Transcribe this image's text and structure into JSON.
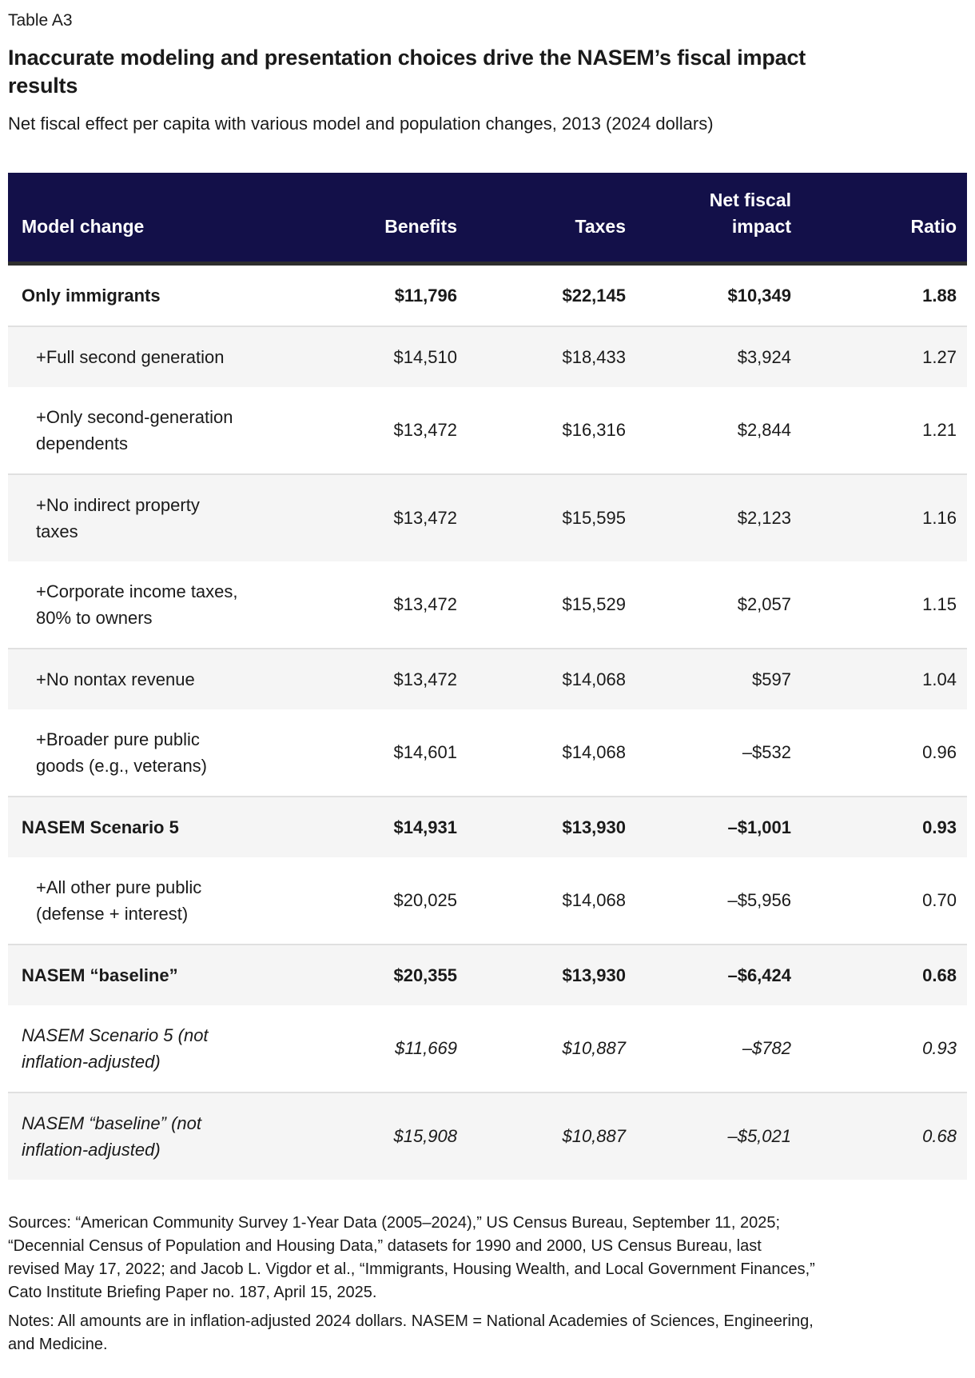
{
  "page": {
    "table_label": "Table A3",
    "title": "Inaccurate modeling and presentation choices drive the NASEM’s fiscal impact\nresults",
    "subtitle": "Net fiscal effect per capita with various model and population changes, 2013 (2024 dollars)"
  },
  "colors": {
    "header_bg": "#131049",
    "header_text": "#ffffff",
    "header_underline": "#2e2e2e",
    "row_stripe": "#f5f5f5",
    "row_divider": "#e0e0e0",
    "body_text": "#1a1a1a"
  },
  "table": {
    "columns": [
      "Model change",
      "Benefits",
      "Taxes",
      "Net fiscal\nimpact",
      "Ratio"
    ],
    "rows": [
      {
        "label": "Only immigrants",
        "benefits": "$11,796",
        "taxes": "$22,145",
        "net": "$10,349",
        "ratio": "1.88",
        "style": "bold"
      },
      {
        "label": "+Full second generation",
        "benefits": "$14,510",
        "taxes": "$18,433",
        "net": "$3,924",
        "ratio": "1.27",
        "style": "step"
      },
      {
        "label": "+Only second-generation\ndependents",
        "benefits": "$13,472",
        "taxes": "$16,316",
        "net": "$2,844",
        "ratio": "1.21",
        "style": "step"
      },
      {
        "label": "+No indirect property\ntaxes",
        "benefits": "$13,472",
        "taxes": "$15,595",
        "net": "$2,123",
        "ratio": "1.16",
        "style": "step"
      },
      {
        "label": "+Corporate income taxes,\n80% to owners",
        "benefits": "$13,472",
        "taxes": "$15,529",
        "net": "$2,057",
        "ratio": "1.15",
        "style": "step"
      },
      {
        "label": "+No nontax revenue",
        "benefits": "$13,472",
        "taxes": "$14,068",
        "net": "$597",
        "ratio": "1.04",
        "style": "step"
      },
      {
        "label": "+Broader pure public\ngoods (e.g., veterans)",
        "benefits": "$14,601",
        "taxes": "$14,068",
        "net": "–$532",
        "ratio": "0.96",
        "style": "step"
      },
      {
        "label": "NASEM Scenario 5",
        "benefits": "$14,931",
        "taxes": "$13,930",
        "net": "–$1,001",
        "ratio": "0.93",
        "style": "bold"
      },
      {
        "label": "+All other pure public\n(defense + interest)",
        "benefits": "$20,025",
        "taxes": "$14,068",
        "net": "–$5,956",
        "ratio": "0.70",
        "style": "step"
      },
      {
        "label": "NASEM “baseline”",
        "benefits": "$20,355",
        "taxes": "$13,930",
        "net": "–$6,424",
        "ratio": "0.68",
        "style": "bold"
      },
      {
        "label": "NASEM Scenario 5 (not\ninflation-adjusted)",
        "benefits": "$11,669",
        "taxes": "$10,887",
        "net": "–$782",
        "ratio": "0.93",
        "style": "italic"
      },
      {
        "label": "NASEM “baseline” (not\ninflation-adjusted)",
        "benefits": "$15,908",
        "taxes": "$10,887",
        "net": "–$5,021",
        "ratio": "0.68",
        "style": "italic"
      }
    ]
  },
  "footer": {
    "sources": "Sources: “American Community Survey 1-Year Data (2005–2024),” US Census Bureau, September 11, 2025;\n“Decennial Census of Population and Housing Data,” datasets for 1990 and 2000, US Census Bureau, last\nrevised May 17, 2022; and Jacob L. Vigdor et al., “Immigrants, Housing Wealth, and Local Government Finances,”\nCato Institute Briefing Paper no. 187, April 15, 2025.",
    "notes": "Notes: All amounts are in inflation-adjusted 2024 dollars. NASEM = National Academies of Sciences, Engineering,\nand Medicine."
  }
}
